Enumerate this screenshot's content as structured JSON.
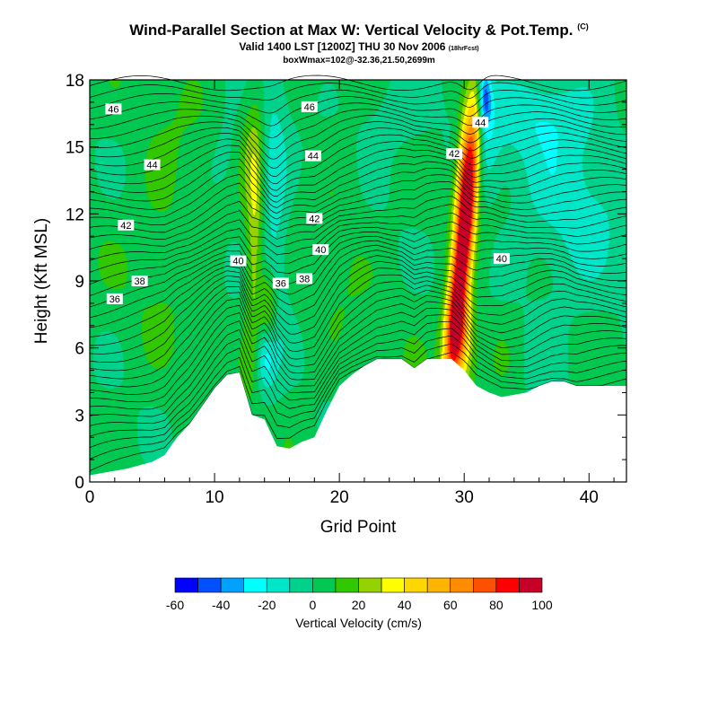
{
  "header": {
    "title": "Wind-Parallel Section at Max W: Vertical Velocity & Pot.Temp.",
    "title_tag": "(C)",
    "valid": "Valid 1400 LST [1200Z] THU 30 Nov 2006",
    "fcst": "(18hrFcst)",
    "box": "boxWmax=102@-32.36,21.50,2699m"
  },
  "chart_data": {
    "type": "heatmap",
    "title": "Wind-Parallel Section at Max W: Vertical Velocity & Pot.Temp.",
    "xlabel": "Grid Point",
    "ylabel": "Height (Kft MSL)",
    "xlim": [
      0,
      43
    ],
    "ylim": [
      0,
      18
    ],
    "x_ticks": [
      0,
      10,
      20,
      30,
      40
    ],
    "y_ticks": [
      0,
      3,
      6,
      9,
      12,
      15,
      18
    ],
    "colorbar": {
      "title": "Vertical Velocity (cm/s)",
      "tick_labels": [
        "-60",
        "-40",
        "-20",
        "0",
        "20",
        "40",
        "60",
        "80",
        "100"
      ],
      "tick_values": [
        -60,
        -40,
        -20,
        0,
        20,
        40,
        60,
        80,
        100
      ],
      "level_min": -60,
      "level_step": 10,
      "colors": [
        "#0000ff",
        "#0050ff",
        "#00a0ff",
        "#00ffff",
        "#00e6c8",
        "#00d28c",
        "#00c850",
        "#32c800",
        "#96d200",
        "#ffff00",
        "#ffd700",
        "#ffb400",
        "#ff8c00",
        "#ff5000",
        "#ff0000",
        "#c80028"
      ]
    },
    "terrain": [
      [
        0,
        0.3
      ],
      [
        3,
        0.6
      ],
      [
        5,
        0.9
      ],
      [
        6,
        1.2
      ],
      [
        7,
        2.0
      ],
      [
        8,
        2.6
      ],
      [
        10,
        4.2
      ],
      [
        11,
        4.8
      ],
      [
        12,
        4.9
      ],
      [
        13,
        3.0
      ],
      [
        14,
        2.8
      ],
      [
        15,
        1.6
      ],
      [
        16,
        1.5
      ],
      [
        17,
        1.8
      ],
      [
        18,
        2.0
      ],
      [
        19,
        3.2
      ],
      [
        20,
        4.3
      ],
      [
        21,
        4.8
      ],
      [
        22,
        5.2
      ],
      [
        23,
        5.5
      ],
      [
        25,
        5.5
      ],
      [
        26,
        5.1
      ],
      [
        27,
        5.5
      ],
      [
        29,
        5.5
      ],
      [
        30,
        5.0
      ],
      [
        31,
        4.3
      ],
      [
        32,
        4.0
      ],
      [
        33,
        3.8
      ],
      [
        35,
        4.0
      ],
      [
        36,
        4.3
      ],
      [
        37,
        4.5
      ],
      [
        38,
        4.5
      ],
      [
        39,
        4.3
      ],
      [
        43,
        4.3
      ]
    ],
    "updrafts": [
      {
        "x": 30.0,
        "y": 11.0,
        "sx": 0.55,
        "sy": 4.5,
        "amp": 98,
        "tilt": 0.18
      },
      {
        "x": 30.1,
        "y": 14.5,
        "sx": 0.6,
        "sy": 2.0,
        "amp": 50,
        "tilt": 0.1
      },
      {
        "x": 29.6,
        "y": 6.5,
        "sx": 0.8,
        "sy": 1.5,
        "amp": 55,
        "tilt": 0
      },
      {
        "x": 13.2,
        "y": 11.0,
        "sx": 0.45,
        "sy": 4.0,
        "amp": 24,
        "tilt": 0.05
      },
      {
        "x": 14.3,
        "y": 7.8,
        "sx": 0.55,
        "sy": 1.2,
        "amp": 30,
        "tilt": 0
      },
      {
        "x": 12.8,
        "y": 15.0,
        "sx": 0.6,
        "sy": 1.8,
        "amp": 14,
        "tilt": 0
      }
    ],
    "downdrafts": [
      {
        "x": 31.6,
        "y": 17.3,
        "sx": 0.4,
        "sy": 1.1,
        "amp": -58
      },
      {
        "x": 31.0,
        "y": 14.8,
        "sx": 1.3,
        "sy": 1.6,
        "amp": -24
      },
      {
        "x": 14.8,
        "y": 12.0,
        "sx": 0.8,
        "sy": 5.0,
        "amp": -20
      },
      {
        "x": 14.1,
        "y": 5.5,
        "sx": 0.5,
        "sy": 1.0,
        "amp": -22
      },
      {
        "x": 38.5,
        "y": 13.0,
        "sx": 3.5,
        "sy": 4.5,
        "amp": -17
      },
      {
        "x": 36.0,
        "y": 16.5,
        "sx": 2.5,
        "sy": 1.2,
        "amp": -14
      },
      {
        "x": 24.5,
        "y": 16.5,
        "sx": 2.5,
        "sy": 1.5,
        "amp": -12
      },
      {
        "x": 11.0,
        "y": 14.5,
        "sx": 1.0,
        "sy": 1.5,
        "amp": -10
      }
    ],
    "theta_labels": [
      {
        "label": "46",
        "x": 1.9,
        "y": 16.7
      },
      {
        "label": "46",
        "x": 17.6,
        "y": 16.8
      },
      {
        "label": "44",
        "x": 31.3,
        "y": 16.1
      },
      {
        "label": "44",
        "x": 5.0,
        "y": 14.2
      },
      {
        "label": "44",
        "x": 17.9,
        "y": 14.6
      },
      {
        "label": "42",
        "x": 29.2,
        "y": 14.7
      },
      {
        "label": "42",
        "x": 2.9,
        "y": 11.5
      },
      {
        "label": "42",
        "x": 18.0,
        "y": 11.8
      },
      {
        "label": "40",
        "x": 18.5,
        "y": 10.4
      },
      {
        "label": "40",
        "x": 11.9,
        "y": 9.9
      },
      {
        "label": "40",
        "x": 33.0,
        "y": 10.0
      },
      {
        "label": "38",
        "x": 4.0,
        "y": 9.0
      },
      {
        "label": "38",
        "x": 17.2,
        "y": 9.1
      },
      {
        "label": "36",
        "x": 15.3,
        "y": 8.9
      },
      {
        "label": "36",
        "x": 2.0,
        "y": 8.2
      }
    ]
  }
}
